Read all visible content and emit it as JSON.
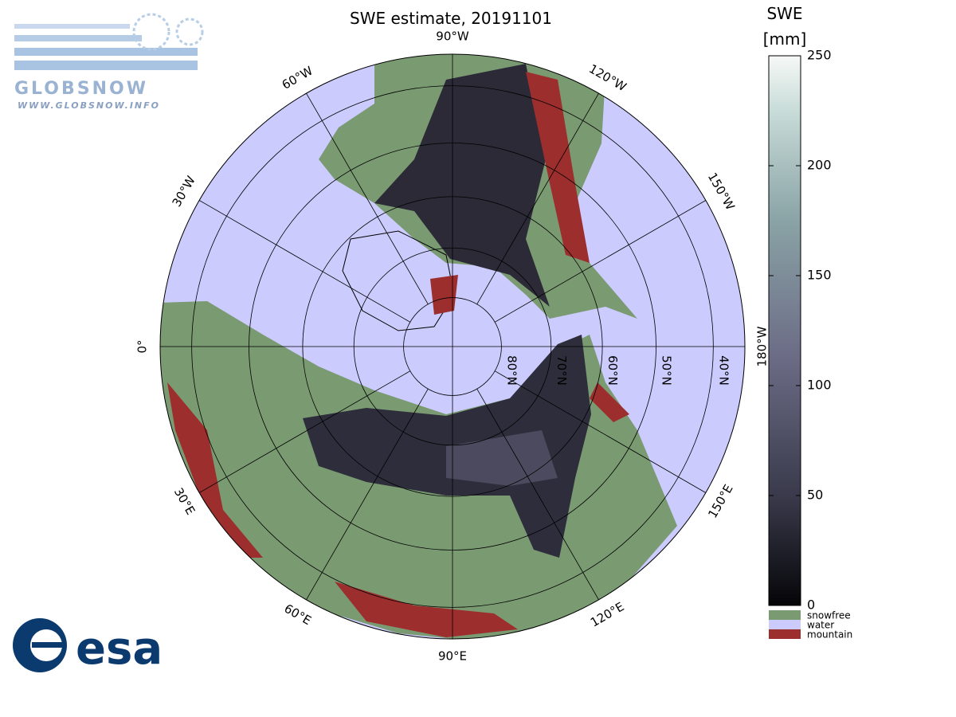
{
  "title": "SWE estimate, 20191101",
  "logo_top": {
    "name": "GLOBSNOW",
    "url": "WWW.GLOBSNOW.INFO"
  },
  "logo_bottom": "esa",
  "colorbar": {
    "label": [
      "SWE",
      "[mm]"
    ],
    "lim": [
      0,
      250
    ],
    "ticks": [
      0,
      50,
      100,
      150,
      200,
      250
    ]
  },
  "legend": [
    {
      "name": "snowfree",
      "color": "#7a9a72"
    },
    {
      "name": "water",
      "color": "#cccbfe"
    },
    {
      "name": "mountain",
      "color": "#9c2e2e"
    }
  ],
  "map": {
    "projection": "north polar stereographic",
    "meridians": [
      {
        "value": 0,
        "label": "0°"
      },
      {
        "value": 30,
        "label": "30°E"
      },
      {
        "value": 60,
        "label": "60°E"
      },
      {
        "value": 90,
        "label": "90°E"
      },
      {
        "value": 120,
        "label": "120°E"
      },
      {
        "value": 150,
        "label": "150°E"
      },
      {
        "value": 180,
        "label": "180°W"
      },
      {
        "value": -150,
        "label": "150°W"
      },
      {
        "value": -120,
        "label": "120°W"
      },
      {
        "value": -90,
        "label": "90°W"
      },
      {
        "value": -60,
        "label": "60°W"
      },
      {
        "value": -30,
        "label": "30°W"
      }
    ],
    "parallels": [
      {
        "value": 80,
        "label": "80°N"
      },
      {
        "value": 70,
        "label": "70°N"
      },
      {
        "value": 60,
        "label": "60°N"
      },
      {
        "value": 50,
        "label": "50°N"
      },
      {
        "value": 40,
        "label": "40°N"
      }
    ]
  }
}
